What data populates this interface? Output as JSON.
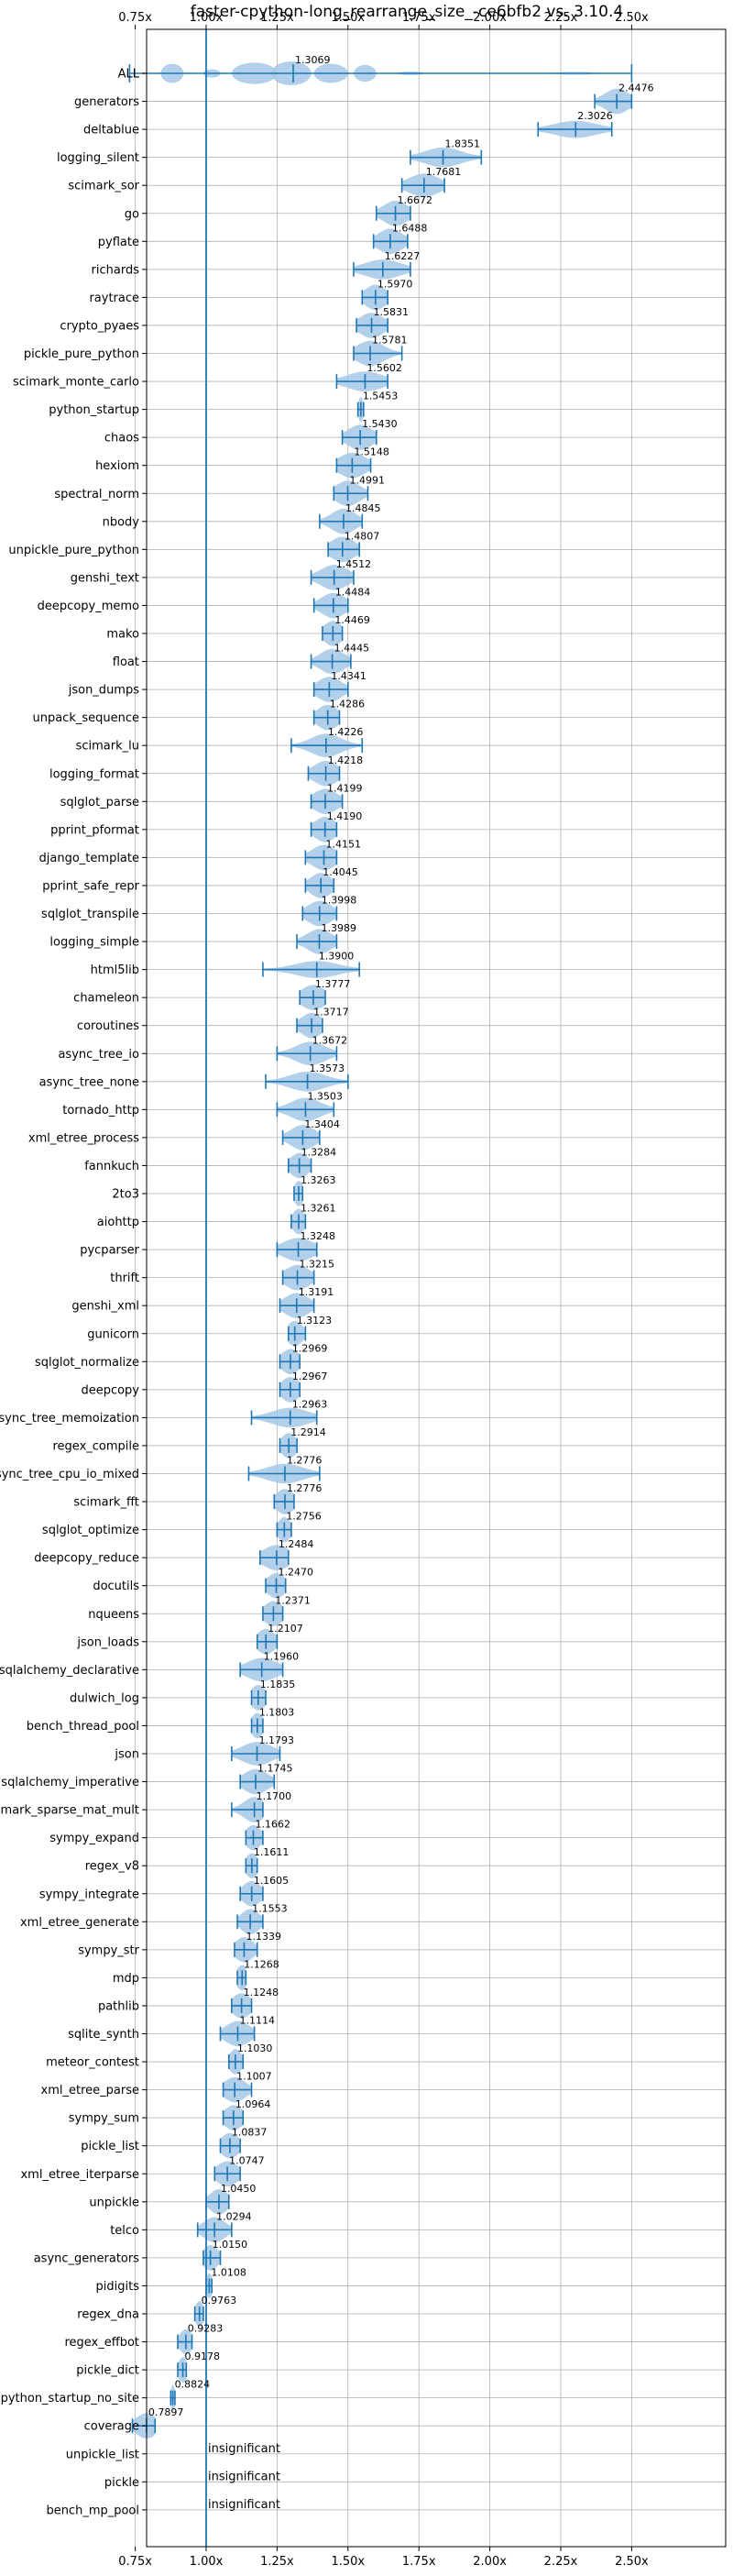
{
  "chart_data": {
    "type": "violin",
    "title": "faster-cpython-long_rearrange_size_-ce6bfb2 vs. 3.10.4",
    "xlabel": "",
    "ylabel": "",
    "xlim": [
      0.68,
      2.54
    ],
    "xticks": [
      0.75,
      1.0,
      1.25,
      1.5,
      1.75,
      2.0,
      2.25,
      2.5
    ],
    "xtick_labels": [
      "0.75x",
      "1.00x",
      "1.25x",
      "1.50x",
      "1.75x",
      "2.00x",
      "2.25x",
      "2.50x"
    ],
    "reference_line": 1.0,
    "grid": true,
    "accent_color": "#1f77b4",
    "violin_color": "#a6c8e6",
    "series": [
      {
        "name": "ALL",
        "label": "1.3069",
        "center": 1.3069,
        "low": 0.73,
        "high": 2.5,
        "spread": 0.05,
        "shape": "multi"
      },
      {
        "name": "generators",
        "label": "2.4476",
        "center": 2.4476,
        "low": 2.37,
        "high": 2.5,
        "spread": 0.04
      },
      {
        "name": "deltablue",
        "label": "2.3026",
        "center": 2.3026,
        "low": 2.17,
        "high": 2.43,
        "spread": 0.07
      },
      {
        "name": "logging_silent",
        "label": "1.8351",
        "center": 1.8351,
        "low": 1.72,
        "high": 1.97,
        "spread": 0.06
      },
      {
        "name": "scimark_sor",
        "label": "1.7681",
        "center": 1.7681,
        "low": 1.69,
        "high": 1.84,
        "spread": 0.05
      },
      {
        "name": "go",
        "label": "1.6672",
        "center": 1.6672,
        "low": 1.6,
        "high": 1.72,
        "spread": 0.04
      },
      {
        "name": "pyflate",
        "label": "1.6488",
        "center": 1.6488,
        "low": 1.59,
        "high": 1.71,
        "spread": 0.04
      },
      {
        "name": "richards",
        "label": "1.6227",
        "center": 1.6227,
        "low": 1.52,
        "high": 1.72,
        "spread": 0.06
      },
      {
        "name": "raytrace",
        "label": "1.5970",
        "center": 1.597,
        "low": 1.55,
        "high": 1.64,
        "spread": 0.035
      },
      {
        "name": "crypto_pyaes",
        "label": "1.5831",
        "center": 1.5831,
        "low": 1.53,
        "high": 1.64,
        "spread": 0.04
      },
      {
        "name": "pickle_pure_python",
        "label": "1.5781",
        "center": 1.5781,
        "low": 1.52,
        "high": 1.69,
        "spread": 0.045
      },
      {
        "name": "scimark_monte_carlo",
        "label": "1.5602",
        "center": 1.5602,
        "low": 1.46,
        "high": 1.64,
        "spread": 0.06
      },
      {
        "name": "python_startup",
        "label": "1.5453",
        "center": 1.5453,
        "low": 1.535,
        "high": 1.555,
        "spread": 0.008
      },
      {
        "name": "chaos",
        "label": "1.5430",
        "center": 1.543,
        "low": 1.48,
        "high": 1.6,
        "spread": 0.04
      },
      {
        "name": "hexiom",
        "label": "1.5148",
        "center": 1.5148,
        "low": 1.46,
        "high": 1.58,
        "spread": 0.045
      },
      {
        "name": "spectral_norm",
        "label": "1.4991",
        "center": 1.4991,
        "low": 1.45,
        "high": 1.57,
        "spread": 0.04
      },
      {
        "name": "nbody",
        "label": "1.4845",
        "center": 1.4845,
        "low": 1.4,
        "high": 1.55,
        "spread": 0.04
      },
      {
        "name": "unpickle_pure_python",
        "label": "1.4807",
        "center": 1.4807,
        "low": 1.43,
        "high": 1.54,
        "spread": 0.04
      },
      {
        "name": "genshi_text",
        "label": "1.4512",
        "center": 1.4512,
        "low": 1.37,
        "high": 1.52,
        "spread": 0.045
      },
      {
        "name": "deepcopy_memo",
        "label": "1.4484",
        "center": 1.4484,
        "low": 1.38,
        "high": 1.5,
        "spread": 0.04
      },
      {
        "name": "mako",
        "label": "1.4469",
        "center": 1.4469,
        "low": 1.41,
        "high": 1.48,
        "spread": 0.03
      },
      {
        "name": "float",
        "label": "1.4445",
        "center": 1.4445,
        "low": 1.37,
        "high": 1.51,
        "spread": 0.04
      },
      {
        "name": "json_dumps",
        "label": "1.4341",
        "center": 1.4341,
        "low": 1.38,
        "high": 1.5,
        "spread": 0.04
      },
      {
        "name": "unpack_sequence",
        "label": "1.4286",
        "center": 1.4286,
        "low": 1.38,
        "high": 1.47,
        "spread": 0.035
      },
      {
        "name": "scimark_lu",
        "label": "1.4226",
        "center": 1.4226,
        "low": 1.3,
        "high": 1.55,
        "spread": 0.05
      },
      {
        "name": "logging_format",
        "label": "1.4218",
        "center": 1.4218,
        "low": 1.36,
        "high": 1.47,
        "spread": 0.04
      },
      {
        "name": "sqlglot_parse",
        "label": "1.4199",
        "center": 1.4199,
        "low": 1.37,
        "high": 1.48,
        "spread": 0.04
      },
      {
        "name": "pprint_pformat",
        "label": "1.4190",
        "center": 1.419,
        "low": 1.37,
        "high": 1.46,
        "spread": 0.035
      },
      {
        "name": "django_template",
        "label": "1.4151",
        "center": 1.4151,
        "low": 1.35,
        "high": 1.46,
        "spread": 0.04
      },
      {
        "name": "pprint_safe_repr",
        "label": "1.4045",
        "center": 1.4045,
        "low": 1.35,
        "high": 1.45,
        "spread": 0.035
      },
      {
        "name": "sqlglot_transpile",
        "label": "1.3998",
        "center": 1.3998,
        "low": 1.34,
        "high": 1.46,
        "spread": 0.04
      },
      {
        "name": "logging_simple",
        "label": "1.3989",
        "center": 1.3989,
        "low": 1.32,
        "high": 1.46,
        "spread": 0.04
      },
      {
        "name": "html5lib",
        "label": "1.3900",
        "center": 1.39,
        "low": 1.2,
        "high": 1.54,
        "spread": 0.07
      },
      {
        "name": "chameleon",
        "label": "1.3777",
        "center": 1.3777,
        "low": 1.33,
        "high": 1.42,
        "spread": 0.04
      },
      {
        "name": "coroutines",
        "label": "1.3717",
        "center": 1.3717,
        "low": 1.32,
        "high": 1.41,
        "spread": 0.035
      },
      {
        "name": "async_tree_io",
        "label": "1.3672",
        "center": 1.3672,
        "low": 1.25,
        "high": 1.46,
        "spread": 0.05
      },
      {
        "name": "async_tree_none",
        "label": "1.3573",
        "center": 1.3573,
        "low": 1.21,
        "high": 1.5,
        "spread": 0.06
      },
      {
        "name": "tornado_http",
        "label": "1.3503",
        "center": 1.3503,
        "low": 1.25,
        "high": 1.45,
        "spread": 0.05
      },
      {
        "name": "xml_etree_process",
        "label": "1.3404",
        "center": 1.3404,
        "low": 1.27,
        "high": 1.4,
        "spread": 0.04
      },
      {
        "name": "fannkuch",
        "label": "1.3284",
        "center": 1.3284,
        "low": 1.29,
        "high": 1.37,
        "spread": 0.03
      },
      {
        "name": "2to3",
        "label": "1.3263",
        "center": 1.3263,
        "low": 1.31,
        "high": 1.34,
        "spread": 0.015
      },
      {
        "name": "aiohttp",
        "label": "1.3261",
        "center": 1.3261,
        "low": 1.3,
        "high": 1.35,
        "spread": 0.02
      },
      {
        "name": "pycparser",
        "label": "1.3248",
        "center": 1.3248,
        "low": 1.25,
        "high": 1.39,
        "spread": 0.05
      },
      {
        "name": "thrift",
        "label": "1.3215",
        "center": 1.3215,
        "low": 1.27,
        "high": 1.38,
        "spread": 0.04
      },
      {
        "name": "genshi_xml",
        "label": "1.3191",
        "center": 1.3191,
        "low": 1.26,
        "high": 1.38,
        "spread": 0.04
      },
      {
        "name": "gunicorn",
        "label": "1.3123",
        "center": 1.3123,
        "low": 1.29,
        "high": 1.35,
        "spread": 0.025
      },
      {
        "name": "sqlglot_normalize",
        "label": "1.2969",
        "center": 1.2969,
        "low": 1.26,
        "high": 1.33,
        "spread": 0.03
      },
      {
        "name": "deepcopy",
        "label": "1.2967",
        "center": 1.2967,
        "low": 1.26,
        "high": 1.33,
        "spread": 0.03
      },
      {
        "name": "async_tree_memoization",
        "label": "1.2963",
        "center": 1.2963,
        "low": 1.16,
        "high": 1.39,
        "spread": 0.06
      },
      {
        "name": "regex_compile",
        "label": "1.2914",
        "center": 1.2914,
        "low": 1.26,
        "high": 1.32,
        "spread": 0.025
      },
      {
        "name": "async_tree_cpu_io_mixed",
        "label": "1.2776",
        "center": 1.2776,
        "low": 1.15,
        "high": 1.4,
        "spread": 0.06
      },
      {
        "name": "scimark_fft",
        "label": "1.2776",
        "center": 1.2776,
        "low": 1.24,
        "high": 1.31,
        "spread": 0.03
      },
      {
        "name": "sqlglot_optimize",
        "label": "1.2756",
        "center": 1.2756,
        "low": 1.25,
        "high": 1.3,
        "spread": 0.02
      },
      {
        "name": "deepcopy_reduce",
        "label": "1.2484",
        "center": 1.2484,
        "low": 1.19,
        "high": 1.29,
        "spread": 0.045
      },
      {
        "name": "docutils",
        "label": "1.2470",
        "center": 1.247,
        "low": 1.21,
        "high": 1.28,
        "spread": 0.03
      },
      {
        "name": "nqueens",
        "label": "1.2371",
        "center": 1.2371,
        "low": 1.2,
        "high": 1.27,
        "spread": 0.03
      },
      {
        "name": "json_loads",
        "label": "1.2107",
        "center": 1.2107,
        "low": 1.18,
        "high": 1.25,
        "spread": 0.03
      },
      {
        "name": "sqlalchemy_declarative",
        "label": "1.1960",
        "center": 1.196,
        "low": 1.12,
        "high": 1.27,
        "spread": 0.05
      },
      {
        "name": "dulwich_log",
        "label": "1.1835",
        "center": 1.1835,
        "low": 1.16,
        "high": 1.21,
        "spread": 0.025
      },
      {
        "name": "bench_thread_pool",
        "label": "1.1803",
        "center": 1.1803,
        "low": 1.16,
        "high": 1.2,
        "spread": 0.02
      },
      {
        "name": "json",
        "label": "1.1793",
        "center": 1.1793,
        "low": 1.09,
        "high": 1.26,
        "spread": 0.05
      },
      {
        "name": "sqlalchemy_imperative",
        "label": "1.1745",
        "center": 1.1745,
        "low": 1.12,
        "high": 1.24,
        "spread": 0.04
      },
      {
        "name": "scimark_sparse_mat_mult",
        "label": "1.1700",
        "center": 1.17,
        "low": 1.09,
        "high": 1.2,
        "spread": 0.035
      },
      {
        "name": "sympy_expand",
        "label": "1.1662",
        "center": 1.1662,
        "low": 1.14,
        "high": 1.2,
        "spread": 0.025
      },
      {
        "name": "regex_v8",
        "label": "1.1611",
        "center": 1.1611,
        "low": 1.14,
        "high": 1.18,
        "spread": 0.02
      },
      {
        "name": "sympy_integrate",
        "label": "1.1605",
        "center": 1.1605,
        "low": 1.12,
        "high": 1.2,
        "spread": 0.03
      },
      {
        "name": "xml_etree_generate",
        "label": "1.1553",
        "center": 1.1553,
        "low": 1.11,
        "high": 1.2,
        "spread": 0.03
      },
      {
        "name": "sympy_str",
        "label": "1.1339",
        "center": 1.1339,
        "low": 1.1,
        "high": 1.18,
        "spread": 0.03
      },
      {
        "name": "mdp",
        "label": "1.1268",
        "center": 1.1268,
        "low": 1.11,
        "high": 1.14,
        "spread": 0.02
      },
      {
        "name": "pathlib",
        "label": "1.1248",
        "center": 1.1248,
        "low": 1.09,
        "high": 1.16,
        "spread": 0.03
      },
      {
        "name": "sqlite_synth",
        "label": "1.1114",
        "center": 1.1114,
        "low": 1.05,
        "high": 1.17,
        "spread": 0.04
      },
      {
        "name": "meteor_contest",
        "label": "1.1030",
        "center": 1.103,
        "low": 1.08,
        "high": 1.13,
        "spread": 0.02
      },
      {
        "name": "xml_etree_parse",
        "label": "1.1007",
        "center": 1.1007,
        "low": 1.06,
        "high": 1.16,
        "spread": 0.035
      },
      {
        "name": "sympy_sum",
        "label": "1.0964",
        "center": 1.0964,
        "low": 1.06,
        "high": 1.13,
        "spread": 0.03
      },
      {
        "name": "pickle_list",
        "label": "1.0837",
        "center": 1.0837,
        "low": 1.05,
        "high": 1.12,
        "spread": 0.03
      },
      {
        "name": "xml_etree_iterparse",
        "label": "1.0747",
        "center": 1.0747,
        "low": 1.03,
        "high": 1.12,
        "spread": 0.035
      },
      {
        "name": "unpickle",
        "label": "1.0450",
        "center": 1.045,
        "low": 1.0,
        "high": 1.08,
        "spread": 0.03
      },
      {
        "name": "telco",
        "label": "1.0294",
        "center": 1.0294,
        "low": 0.97,
        "high": 1.09,
        "spread": 0.035
      },
      {
        "name": "async_generators",
        "label": "1.0150",
        "center": 1.015,
        "low": 0.99,
        "high": 1.05,
        "spread": 0.025
      },
      {
        "name": "pidigits",
        "label": "1.0108",
        "center": 1.0108,
        "low": 1.0,
        "high": 1.02,
        "spread": 0.01
      },
      {
        "name": "regex_dna",
        "label": "0.9763",
        "center": 0.9763,
        "low": 0.96,
        "high": 0.99,
        "spread": 0.015
      },
      {
        "name": "regex_effbot",
        "label": "0.9283",
        "center": 0.9283,
        "low": 0.9,
        "high": 0.95,
        "spread": 0.02
      },
      {
        "name": "pickle_dict",
        "label": "0.9178",
        "center": 0.9178,
        "low": 0.9,
        "high": 0.93,
        "spread": 0.015
      },
      {
        "name": "python_startup_no_site",
        "label": "0.8824",
        "center": 0.8824,
        "low": 0.875,
        "high": 0.89,
        "spread": 0.008
      },
      {
        "name": "coverage",
        "label": "0.7897",
        "center": 0.7897,
        "low": 0.74,
        "high": 0.82,
        "spread": 0.035
      },
      {
        "name": "unpickle_list",
        "label": "insignificant",
        "center": null
      },
      {
        "name": "pickle",
        "label": "insignificant",
        "center": null
      },
      {
        "name": "bench_mp_pool",
        "label": "insignificant",
        "center": null
      }
    ]
  }
}
